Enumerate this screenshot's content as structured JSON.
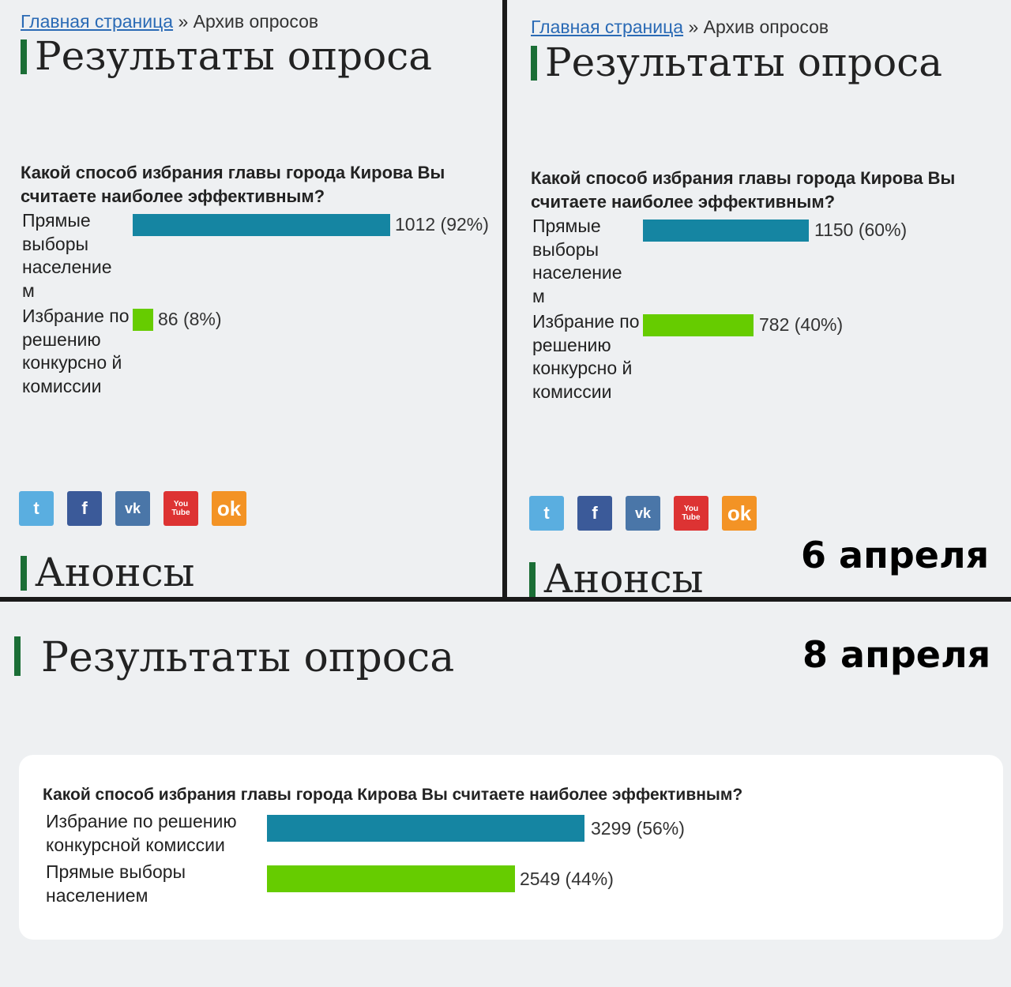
{
  "breadcrumb": {
    "home_link": "Главная страница",
    "separator": "»",
    "current": "Архив опросов"
  },
  "poll_title": "Результаты опроса",
  "question": "Какой способ избрания главы города Кирова Вы считаете наиболее эффективным?",
  "announcements_title": "Анонсы",
  "social_icons": [
    "twitter-icon",
    "facebook-icon",
    "vk-icon",
    "youtube-icon",
    "odnoklassniki-icon"
  ],
  "social_glyphs": {
    "twitter": "t",
    "facebook": "f",
    "vk": "vk",
    "youtube_1": "You",
    "youtube_2": "Tube",
    "ok": "ok"
  },
  "colors": {
    "bar_primary": "#1585a2",
    "bar_secondary": "#66cc00",
    "title_marker": "#1b6e36",
    "link": "#2a6ab5"
  },
  "panel_left": {
    "options": [
      {
        "label": "Прямые выборы население м",
        "value_text": "1012 (92%)",
        "percent": 92
      },
      {
        "label": "Избрание по решению конкурсно й комиссии",
        "value_text": "86 (8%)",
        "percent": 8
      }
    ]
  },
  "panel_right": {
    "date": "6 апреля",
    "options": [
      {
        "label": "Прямые выборы население м",
        "value_text": "1150 (60%)",
        "percent": 60
      },
      {
        "label": "Избрание по решению конкурсно й комиссии",
        "value_text": "782 (40%)",
        "percent": 40
      }
    ]
  },
  "panel_bottom": {
    "date": "8 апреля",
    "options": [
      {
        "label": "Избрание по решению конкурсной комиссии",
        "value_text": "3299 (56%)",
        "percent": 56
      },
      {
        "label": "Прямые выборы населением",
        "value_text": "2549 (44%)",
        "percent": 44
      }
    ]
  }
}
